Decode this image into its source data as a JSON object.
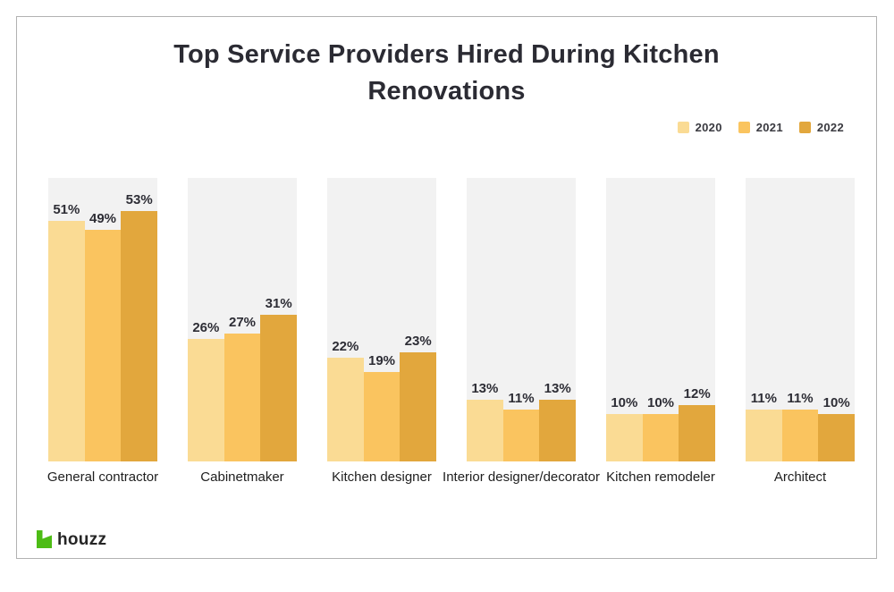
{
  "page": {
    "background": "#ffffff",
    "frame_border_color": "#b2b2b2"
  },
  "chart_data": {
    "type": "bar",
    "title": "Top Service Providers Hired During Kitchen Renovations",
    "categories": [
      "General contractor",
      "Cabinetmaker",
      "Kitchen designer",
      "Interior designer/decorator",
      "Kitchen remodeler",
      "Architect"
    ],
    "series": [
      {
        "name": "2020",
        "color": "#FADB94",
        "values": [
          51,
          26,
          22,
          13,
          10,
          11
        ]
      },
      {
        "name": "2021",
        "color": "#FAC45F",
        "values": [
          49,
          27,
          19,
          11,
          10,
          11
        ]
      },
      {
        "name": "2022",
        "color": "#E2A73D",
        "values": [
          53,
          31,
          23,
          13,
          12,
          10
        ]
      }
    ],
    "value_suffix": "%",
    "ylim": [
      0,
      60
    ],
    "grid": false,
    "legend_position": "top-right",
    "track_color": "#f2f2f2",
    "xlabel": "",
    "ylabel": ""
  },
  "footer": {
    "brand": "houzz",
    "brand_color": "#4DBC15"
  }
}
